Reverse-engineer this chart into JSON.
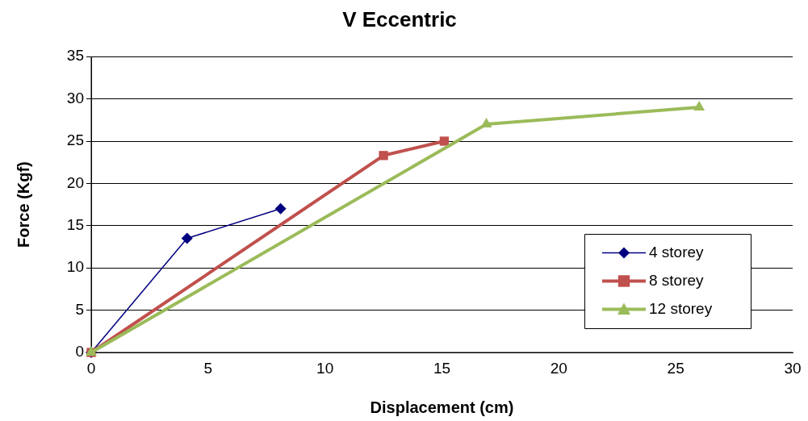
{
  "chart_data": {
    "type": "line",
    "title": "V Eccentric",
    "xlabel": "Displacement (cm)",
    "ylabel": "Force (Kgf)",
    "xlim": [
      0,
      30
    ],
    "xticks": [
      0,
      5,
      10,
      15,
      20,
      25,
      30
    ],
    "ylim": [
      0,
      35
    ],
    "yticks": [
      0,
      5,
      10,
      15,
      20,
      25,
      30,
      35
    ],
    "grid": "y",
    "legend": "bottom right",
    "line_style": "solid",
    "series": [
      {
        "name": "4 storey",
        "color": "#000080",
        "marker": "diamond",
        "x": [
          0,
          4.1,
          8.1
        ],
        "values": [
          0,
          13.5,
          17
        ]
      },
      {
        "name": "8 storey",
        "color": "#c0504d",
        "marker": "square",
        "x": [
          0,
          12.5,
          15.1
        ],
        "values": [
          0,
          23.3,
          25
        ]
      },
      {
        "name": "12 storey",
        "color": "#9bbb59",
        "marker": "triangle",
        "x": [
          0,
          16.9,
          26
        ],
        "values": [
          0,
          27,
          29
        ]
      }
    ]
  }
}
